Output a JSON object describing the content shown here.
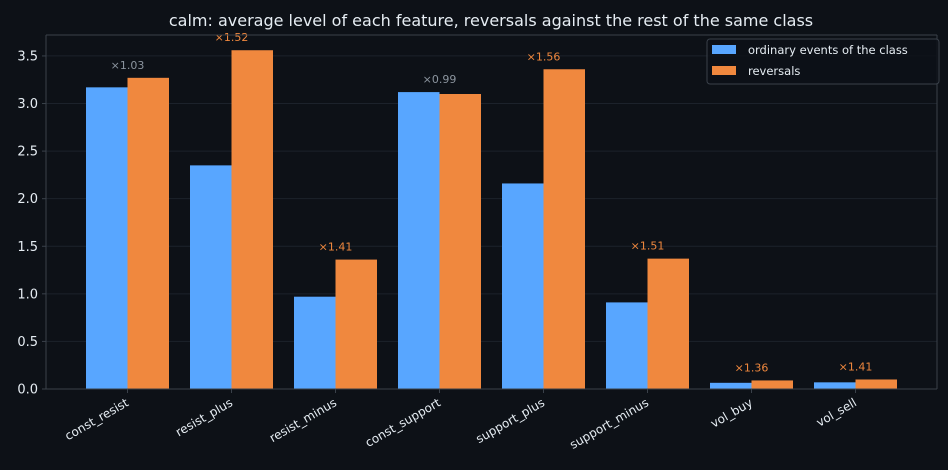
{
  "colors": {
    "background": "#0d1117",
    "axis": "#3a414a",
    "grid": "#1c222b",
    "ordinary": "#58a6ff",
    "reversals": "#f0883e",
    "neutral_label": "#8b949e",
    "highlight_label": "#f0883e"
  },
  "chart_data": {
    "type": "bar",
    "title": "calm: average level of each feature, reversals against the rest of the same class",
    "xlabel": "",
    "ylabel": "",
    "ylim": [
      0,
      3.72
    ],
    "yticks": [
      "0.0",
      "0.5",
      "1.0",
      "1.5",
      "2.0",
      "2.5",
      "3.0",
      "3.5"
    ],
    "ytick_values": [
      0,
      0.5,
      1.0,
      1.5,
      2.0,
      2.5,
      3.0,
      3.5
    ],
    "grid": true,
    "legend_position": "top-right",
    "categories": [
      "const_resist",
      "resist_plus",
      "resist_minus",
      "const_support",
      "support_plus",
      "support_minus",
      "vol_buy",
      "vol_sell"
    ],
    "series": [
      {
        "name": "ordinary events of the class",
        "values": [
          3.17,
          2.35,
          0.97,
          3.12,
          2.16,
          0.91,
          0.065,
          0.07
        ]
      },
      {
        "name": "reversals",
        "values": [
          3.27,
          3.56,
          1.36,
          3.1,
          3.36,
          1.37,
          0.09,
          0.1
        ]
      }
    ],
    "annotations": [
      {
        "text": "×1.03",
        "highlight": false
      },
      {
        "text": "×1.52",
        "highlight": true
      },
      {
        "text": "×1.41",
        "highlight": true
      },
      {
        "text": "×0.99",
        "highlight": false
      },
      {
        "text": "×1.56",
        "highlight": true
      },
      {
        "text": "×1.51",
        "highlight": true
      },
      {
        "text": "×1.36",
        "highlight": true
      },
      {
        "text": "×1.41",
        "highlight": true
      }
    ]
  }
}
